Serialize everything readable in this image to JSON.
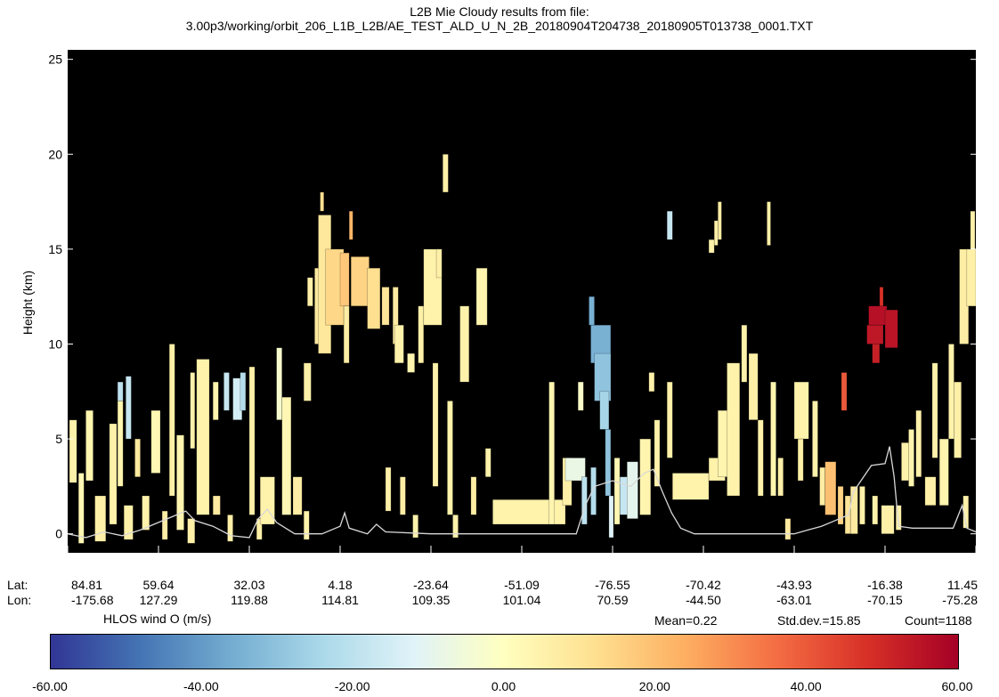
{
  "chart_data": {
    "type": "heatmap",
    "title": "L2B Mie Cloudy results from file:",
    "subtitle": "3.00p3/working/orbit_206_L1B_L2B/AE_TEST_ALD_U_N_2B_20180904T204738_20180905T013738_0001.TXT",
    "ylabel": "Height (km)",
    "ylim": [
      -1,
      25.5
    ],
    "yticks": [
      0,
      5,
      10,
      15,
      20,
      25
    ],
    "xlim": [
      0,
      1
    ],
    "x_axis_rows": {
      "lat_label": "Lat:",
      "lon_label": "Lon:",
      "lat": [
        "84.81",
        "59.64",
        "32.03",
        "4.18",
        "-23.64",
        "-51.09",
        "-76.55",
        "-70.42",
        "-43.93",
        "-16.38",
        "11.45"
      ],
      "lon": [
        "-175.68",
        "127.29",
        "119.88",
        "114.81",
        "109.35",
        "101.04",
        "70.59",
        "-44.50",
        "-63.01",
        "-70.15",
        "-75.28"
      ]
    },
    "colorbar": {
      "label": "HLOS wind O (m/s)",
      "min": -60,
      "max": 60,
      "ticks": [
        "-60.00",
        "-40.00",
        "-20.00",
        "0.00",
        "20.00",
        "40.00",
        "60.00"
      ],
      "colors": [
        "#313695",
        "#4575b4",
        "#74add1",
        "#abd9e9",
        "#e0f3f8",
        "#ffffbf",
        "#fee090",
        "#fdae61",
        "#f46d43",
        "#d73027",
        "#a50026"
      ]
    },
    "stats": {
      "mean": "Mean=0.22",
      "std": "Std.dev.=15.85",
      "count": "Count=1188"
    },
    "ground_line": [
      [
        0,
        0
      ],
      [
        0.02,
        -0.2
      ],
      [
        0.04,
        0.1
      ],
      [
        0.06,
        -0.1
      ],
      [
        0.08,
        0.2
      ],
      [
        0.1,
        0.6
      ],
      [
        0.12,
        1.0
      ],
      [
        0.13,
        1.2
      ],
      [
        0.14,
        0.7
      ],
      [
        0.16,
        0.4
      ],
      [
        0.18,
        -0.1
      ],
      [
        0.2,
        -0.2
      ],
      [
        0.21,
        0.8
      ],
      [
        0.22,
        1.3
      ],
      [
        0.23,
        0.6
      ],
      [
        0.25,
        0.0
      ],
      [
        0.28,
        0.0
      ],
      [
        0.3,
        0.4
      ],
      [
        0.305,
        1.1
      ],
      [
        0.31,
        0.3
      ],
      [
        0.33,
        0.0
      ],
      [
        0.34,
        0.5
      ],
      [
        0.35,
        0.1
      ],
      [
        0.4,
        0.0
      ],
      [
        0.45,
        0.0
      ],
      [
        0.5,
        0.0
      ],
      [
        0.55,
        0.0
      ],
      [
        0.56,
        0.0
      ],
      [
        0.57,
        1.5
      ],
      [
        0.58,
        2.5
      ],
      [
        0.6,
        2.8
      ],
      [
        0.62,
        2.5
      ],
      [
        0.635,
        3.2
      ],
      [
        0.645,
        3.4
      ],
      [
        0.655,
        2.2
      ],
      [
        0.665,
        1.1
      ],
      [
        0.675,
        0.3
      ],
      [
        0.69,
        0.0
      ],
      [
        0.72,
        0.0
      ],
      [
        0.76,
        0.0
      ],
      [
        0.8,
        0.0
      ],
      [
        0.815,
        0.2
      ],
      [
        0.83,
        0.4
      ],
      [
        0.845,
        0.7
      ],
      [
        0.86,
        1.0
      ],
      [
        0.865,
        2.2
      ],
      [
        0.875,
        2.9
      ],
      [
        0.885,
        3.6
      ],
      [
        0.9,
        3.7
      ],
      [
        0.905,
        4.6
      ],
      [
        0.91,
        3.0
      ],
      [
        0.915,
        0.4
      ],
      [
        0.93,
        0.3
      ],
      [
        0.95,
        0.3
      ],
      [
        0.975,
        0.3
      ],
      [
        0.985,
        1.5
      ],
      [
        0.99,
        0.3
      ],
      [
        1.0,
        0.1
      ]
    ],
    "cells": [
      {
        "x": 0.002,
        "w": 0.008,
        "y0": 2.7,
        "y1": 6.0,
        "v": 5
      },
      {
        "x": 0.012,
        "w": 0.006,
        "y0": -0.5,
        "y1": 3.2,
        "v": 3
      },
      {
        "x": 0.02,
        "w": 0.008,
        "y0": 2.8,
        "y1": 6.5,
        "v": 4
      },
      {
        "x": 0.03,
        "w": 0.012,
        "y0": -0.4,
        "y1": 2.0,
        "v": 6
      },
      {
        "x": 0.046,
        "w": 0.008,
        "y0": 0.5,
        "y1": 5.8,
        "v": 5
      },
      {
        "x": 0.055,
        "w": 0.006,
        "y0": 7.0,
        "y1": 8.0,
        "v": -20
      },
      {
        "x": 0.055,
        "w": 0.006,
        "y0": 2.5,
        "y1": 7.0,
        "v": 4
      },
      {
        "x": 0.062,
        "w": 0.01,
        "y0": -0.3,
        "y1": 1.5,
        "v": 6
      },
      {
        "x": 0.064,
        "w": 0.006,
        "y0": 5.0,
        "y1": 8.3,
        "v": -18
      },
      {
        "x": 0.074,
        "w": 0.006,
        "y0": 3.0,
        "y1": 5.0,
        "v": 8
      },
      {
        "x": 0.082,
        "w": 0.008,
        "y0": 0.2,
        "y1": 2.0,
        "v": 5
      },
      {
        "x": 0.092,
        "w": 0.01,
        "y0": 3.2,
        "y1": 6.5,
        "v": 3
      },
      {
        "x": 0.104,
        "w": 0.006,
        "y0": -0.3,
        "y1": 1.2,
        "v": 7
      },
      {
        "x": 0.112,
        "w": 0.006,
        "y0": 2.0,
        "y1": 10.0,
        "v": 6
      },
      {
        "x": 0.12,
        "w": 0.008,
        "y0": 0.2,
        "y1": 5.2,
        "v": 4
      },
      {
        "x": 0.132,
        "w": 0.008,
        "y0": -0.5,
        "y1": 0.8,
        "v": 6
      },
      {
        "x": 0.135,
        "w": 0.005,
        "y0": 4.5,
        "y1": 8.5,
        "v": 5
      },
      {
        "x": 0.142,
        "w": 0.014,
        "y0": 1.0,
        "y1": 9.2,
        "v": 5
      },
      {
        "x": 0.16,
        "w": 0.008,
        "y0": 1.0,
        "y1": 2.0,
        "v": 8
      },
      {
        "x": 0.16,
        "w": 0.006,
        "y0": 6.0,
        "y1": 8.0,
        "v": 4
      },
      {
        "x": 0.172,
        "w": 0.006,
        "y0": 6.5,
        "y1": 8.5,
        "v": -18
      },
      {
        "x": 0.176,
        "w": 0.006,
        "y0": -0.4,
        "y1": 1.0,
        "v": 6
      },
      {
        "x": 0.182,
        "w": 0.01,
        "y0": 6.0,
        "y1": 8.2,
        "v": -15
      },
      {
        "x": 0.19,
        "w": 0.006,
        "y0": 6.5,
        "y1": 8.5,
        "v": -22
      },
      {
        "x": 0.2,
        "w": 0.006,
        "y0": 1.0,
        "y1": 8.8,
        "v": 6
      },
      {
        "x": 0.208,
        "w": 0.006,
        "y0": -0.3,
        "y1": 0.8,
        "v": 6
      },
      {
        "x": 0.212,
        "w": 0.016,
        "y0": 0.5,
        "y1": 3.0,
        "v": 5
      },
      {
        "x": 0.23,
        "w": 0.006,
        "y0": 6.0,
        "y1": 9.8,
        "v": -3
      },
      {
        "x": 0.236,
        "w": 0.01,
        "y0": 1.0,
        "y1": 7.2,
        "v": 3
      },
      {
        "x": 0.248,
        "w": 0.01,
        "y0": 1.0,
        "y1": 3.0,
        "v": 7
      },
      {
        "x": 0.26,
        "w": 0.008,
        "y0": 7.0,
        "y1": 9.0,
        "v": 6
      },
      {
        "x": 0.26,
        "w": 0.006,
        "y0": -0.3,
        "y1": 1.2,
        "v": 5
      },
      {
        "x": 0.264,
        "w": 0.006,
        "y0": 12.0,
        "y1": 13.5,
        "v": 6
      },
      {
        "x": 0.272,
        "w": 0.012,
        "y0": 10.0,
        "y1": 14.0,
        "v": 8
      },
      {
        "x": 0.276,
        "w": 0.014,
        "y0": 9.5,
        "y1": 16.8,
        "v": 9
      },
      {
        "x": 0.278,
        "w": 0.004,
        "y0": 17.0,
        "y1": 18.0,
        "v": 12
      },
      {
        "x": 0.284,
        "w": 0.02,
        "y0": 11.0,
        "y1": 15.0,
        "v": 14
      },
      {
        "x": 0.3,
        "w": 0.01,
        "y0": 12.0,
        "y1": 14.8,
        "v": 18
      },
      {
        "x": 0.304,
        "w": 0.006,
        "y0": 9.0,
        "y1": 12.0,
        "v": 7
      },
      {
        "x": 0.31,
        "w": 0.004,
        "y0": 15.5,
        "y1": 17.0,
        "v": 22
      },
      {
        "x": 0.312,
        "w": 0.02,
        "y0": 12.0,
        "y1": 14.6,
        "v": 15
      },
      {
        "x": 0.33,
        "w": 0.014,
        "y0": 10.8,
        "y1": 14.0,
        "v": 12
      },
      {
        "x": 0.346,
        "w": 0.008,
        "y0": 11.0,
        "y1": 13.0,
        "v": 10
      },
      {
        "x": 0.35,
        "w": 0.006,
        "y0": 1.2,
        "y1": 3.5,
        "v": 6
      },
      {
        "x": 0.358,
        "w": 0.006,
        "y0": 10.0,
        "y1": 13.0,
        "v": 8
      },
      {
        "x": 0.36,
        "w": 0.01,
        "y0": 9.0,
        "y1": 11.0,
        "v": 5
      },
      {
        "x": 0.366,
        "w": 0.006,
        "y0": 1.0,
        "y1": 3.0,
        "v": 7
      },
      {
        "x": 0.374,
        "w": 0.008,
        "y0": 8.5,
        "y1": 9.5,
        "v": 4
      },
      {
        "x": 0.38,
        "w": 0.006,
        "y0": -0.2,
        "y1": 1.0,
        "v": 5
      },
      {
        "x": 0.386,
        "w": 0.006,
        "y0": 9.0,
        "y1": 12.0,
        "v": 6
      },
      {
        "x": 0.392,
        "w": 0.02,
        "y0": 11.0,
        "y1": 15.0,
        "v": 5
      },
      {
        "x": 0.402,
        "w": 0.006,
        "y0": 2.5,
        "y1": 9.0,
        "v": 5
      },
      {
        "x": 0.406,
        "w": 0.006,
        "y0": 13.5,
        "y1": 15.0,
        "v": 6
      },
      {
        "x": 0.413,
        "w": 0.006,
        "y0": 18.0,
        "y1": 20.0,
        "v": 6
      },
      {
        "x": 0.418,
        "w": 0.006,
        "y0": 1.0,
        "y1": 7.0,
        "v": 5
      },
      {
        "x": 0.424,
        "w": 0.006,
        "y0": -0.2,
        "y1": 1.0,
        "v": 5
      },
      {
        "x": 0.432,
        "w": 0.01,
        "y0": 8.0,
        "y1": 12.0,
        "v": 5
      },
      {
        "x": 0.444,
        "w": 0.006,
        "y0": 1.0,
        "y1": 3.0,
        "v": 7
      },
      {
        "x": 0.45,
        "w": 0.012,
        "y0": 11.0,
        "y1": 14.0,
        "v": 4
      },
      {
        "x": 0.46,
        "w": 0.006,
        "y0": 3.0,
        "y1": 4.5,
        "v": 5
      },
      {
        "x": 0.468,
        "w": 0.08,
        "y0": 0.5,
        "y1": 1.8,
        "v": 5
      },
      {
        "x": 0.53,
        "w": 0.006,
        "y0": 0.5,
        "y1": 8.0,
        "v": 4
      },
      {
        "x": 0.545,
        "w": 0.01,
        "y0": 1.5,
        "y1": 4.0,
        "v": 6
      },
      {
        "x": 0.548,
        "w": 0.022,
        "y0": 2.8,
        "y1": 4.0,
        "v": -8
      },
      {
        "x": 0.562,
        "w": 0.006,
        "y0": 6.5,
        "y1": 8.0,
        "v": -2
      },
      {
        "x": 0.566,
        "w": 0.006,
        "y0": 0.5,
        "y1": 3.0,
        "v": -20
      },
      {
        "x": 0.576,
        "w": 0.006,
        "y0": 1.0,
        "y1": 3.5,
        "v": -22
      },
      {
        "x": 0.574,
        "w": 0.006,
        "y0": 11.0,
        "y1": 12.5,
        "v": -35
      },
      {
        "x": 0.576,
        "w": 0.022,
        "y0": 9.0,
        "y1": 11.0,
        "v": -35
      },
      {
        "x": 0.58,
        "w": 0.018,
        "y0": 7.0,
        "y1": 9.5,
        "v": -30
      },
      {
        "x": 0.586,
        "w": 0.01,
        "y0": 5.5,
        "y1": 7.5,
        "v": -25
      },
      {
        "x": 0.592,
        "w": 0.006,
        "y0": 2.0,
        "y1": 5.5,
        "v": -30
      },
      {
        "x": 0.596,
        "w": 0.005,
        "y0": -0.2,
        "y1": 2.0,
        "v": -12
      },
      {
        "x": 0.602,
        "w": 0.006,
        "y0": 0.5,
        "y1": 4.0,
        "v": 3
      },
      {
        "x": 0.608,
        "w": 0.01,
        "y0": 1.0,
        "y1": 3.0,
        "v": -18
      },
      {
        "x": 0.616,
        "w": 0.012,
        "y0": 0.8,
        "y1": 3.8,
        "v": -10
      },
      {
        "x": 0.63,
        "w": 0.012,
        "y0": 1.0,
        "y1": 5.0,
        "v": 4
      },
      {
        "x": 0.64,
        "w": 0.006,
        "y0": 7.5,
        "y1": 8.5,
        "v": 5
      },
      {
        "x": 0.646,
        "w": 0.006,
        "y0": 2.5,
        "y1": 6.0,
        "v": 5
      },
      {
        "x": 0.66,
        "w": 0.006,
        "y0": 4.0,
        "y1": 8.0,
        "v": 6
      },
      {
        "x": 0.666,
        "w": 0.04,
        "y0": 1.8,
        "y1": 3.2,
        "v": 5
      },
      {
        "x": 0.66,
        "w": 0.006,
        "y0": 15.5,
        "y1": 17.0,
        "v": -18
      },
      {
        "x": 0.706,
        "w": 0.006,
        "y0": 14.8,
        "y1": 15.5,
        "v": 5
      },
      {
        "x": 0.712,
        "w": 0.004,
        "y0": 15.2,
        "y1": 16.5,
        "v": 6
      },
      {
        "x": 0.716,
        "w": 0.004,
        "y0": 15.5,
        "y1": 17.5,
        "v": 7
      },
      {
        "x": 0.706,
        "w": 0.018,
        "y0": 2.8,
        "y1": 4.0,
        "v": 5
      },
      {
        "x": 0.716,
        "w": 0.018,
        "y0": 3.0,
        "y1": 6.5,
        "v": 4
      },
      {
        "x": 0.726,
        "w": 0.014,
        "y0": 2.0,
        "y1": 9.0,
        "v": 5
      },
      {
        "x": 0.742,
        "w": 0.006,
        "y0": 8.0,
        "y1": 11.0,
        "v": 5
      },
      {
        "x": 0.75,
        "w": 0.01,
        "y0": 6.0,
        "y1": 9.5,
        "v": 6
      },
      {
        "x": 0.76,
        "w": 0.006,
        "y0": 2.0,
        "y1": 6.0,
        "v": 5
      },
      {
        "x": 0.77,
        "w": 0.004,
        "y0": 15.2,
        "y1": 17.5,
        "v": 6
      },
      {
        "x": 0.774,
        "w": 0.006,
        "y0": 2.0,
        "y1": 8.0,
        "v": 4
      },
      {
        "x": 0.782,
        "w": 0.006,
        "y0": 2.0,
        "y1": 4.0,
        "v": 6
      },
      {
        "x": 0.79,
        "w": 0.006,
        "y0": -0.3,
        "y1": 0.8,
        "v": 8
      },
      {
        "x": 0.8,
        "w": 0.016,
        "y0": 5.0,
        "y1": 8.0,
        "v": 5
      },
      {
        "x": 0.804,
        "w": 0.006,
        "y0": 2.8,
        "y1": 5.0,
        "v": 6
      },
      {
        "x": 0.82,
        "w": 0.006,
        "y0": 3.0,
        "y1": 7.0,
        "v": 5
      },
      {
        "x": 0.828,
        "w": 0.006,
        "y0": 1.5,
        "y1": 3.5,
        "v": 7
      },
      {
        "x": 0.834,
        "w": 0.012,
        "y0": 1.0,
        "y1": 3.8,
        "v": 20
      },
      {
        "x": 0.848,
        "w": 0.006,
        "y0": 0.5,
        "y1": 2.5,
        "v": 15
      },
      {
        "x": 0.852,
        "w": 0.006,
        "y0": 6.5,
        "y1": 8.5,
        "v": 40
      },
      {
        "x": 0.856,
        "w": 0.006,
        "y0": 0.0,
        "y1": 2.0,
        "v": 10
      },
      {
        "x": 0.862,
        "w": 0.008,
        "y0": 0.0,
        "y1": 2.5,
        "v": 8
      },
      {
        "x": 0.872,
        "w": 0.006,
        "y0": 0.5,
        "y1": 2.5,
        "v": 6
      },
      {
        "x": 0.886,
        "w": 0.008,
        "y0": 9.0,
        "y1": 10.0,
        "v": 52
      },
      {
        "x": 0.88,
        "w": 0.018,
        "y0": 10.0,
        "y1": 11.0,
        "v": 54
      },
      {
        "x": 0.882,
        "w": 0.02,
        "y0": 11.0,
        "y1": 12.0,
        "v": 56
      },
      {
        "x": 0.894,
        "w": 0.004,
        "y0": 12.0,
        "y1": 13.0,
        "v": 48
      },
      {
        "x": 0.9,
        "w": 0.014,
        "y0": 9.8,
        "y1": 11.8,
        "v": 55
      },
      {
        "x": 0.886,
        "w": 0.006,
        "y0": 0.5,
        "y1": 2.0,
        "v": 5
      },
      {
        "x": 0.896,
        "w": 0.014,
        "y0": 0.0,
        "y1": 1.5,
        "v": 6
      },
      {
        "x": 0.912,
        "w": 0.006,
        "y0": 0.2,
        "y1": 1.5,
        "v": 6
      },
      {
        "x": 0.918,
        "w": 0.008,
        "y0": 2.8,
        "y1": 4.8,
        "v": 5
      },
      {
        "x": 0.926,
        "w": 0.006,
        "y0": 2.5,
        "y1": 5.5,
        "v": 4
      },
      {
        "x": 0.934,
        "w": 0.006,
        "y0": 3.0,
        "y1": 6.5,
        "v": 5
      },
      {
        "x": 0.944,
        "w": 0.012,
        "y0": 1.5,
        "y1": 3.0,
        "v": 6
      },
      {
        "x": 0.952,
        "w": 0.006,
        "y0": 4.0,
        "y1": 9.0,
        "v": 5
      },
      {
        "x": 0.96,
        "w": 0.01,
        "y0": 1.5,
        "y1": 5.0,
        "v": 4
      },
      {
        "x": 0.97,
        "w": 0.006,
        "y0": 5.0,
        "y1": 10.0,
        "v": 5
      },
      {
        "x": 0.976,
        "w": 0.008,
        "y0": 4.0,
        "y1": 8.0,
        "v": 6
      },
      {
        "x": 0.982,
        "w": 0.01,
        "y0": 10.0,
        "y1": 15.0,
        "v": 7
      },
      {
        "x": 0.99,
        "w": 0.01,
        "y0": 12.0,
        "y1": 15.0,
        "v": 6
      },
      {
        "x": 0.994,
        "w": 0.005,
        "y0": 15.0,
        "y1": 17.0,
        "v": 5
      },
      {
        "x": 0.986,
        "w": 0.006,
        "y0": 0.3,
        "y1": 2.0,
        "v": 5
      }
    ]
  }
}
